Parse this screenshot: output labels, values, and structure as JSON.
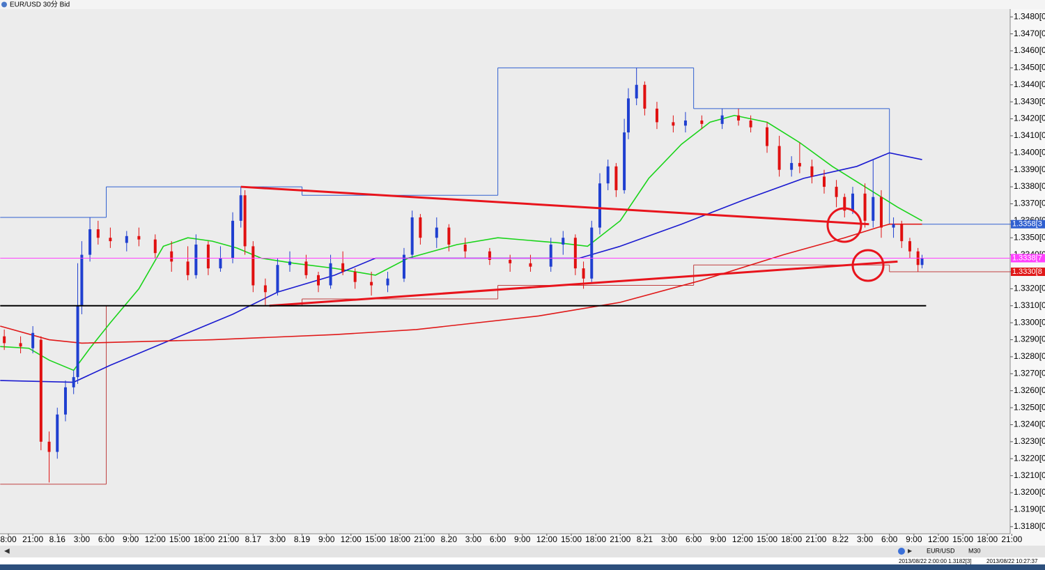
{
  "window_title": "EUR/USD 30分 Bid",
  "chart_data": {
    "type": "candlestick",
    "up_color": "#1f3fd0",
    "down_color": "#e01010",
    "xlim": [
      -2.05,
      245.6
    ],
    "ylim": [
      1.3175,
      1.3485
    ],
    "xticks": [
      {
        "value": 0,
        "label": "8:00"
      },
      {
        "value": 6,
        "label": "21:00"
      },
      {
        "value": 12,
        "label": "8.16"
      },
      {
        "value": 18,
        "label": "3:00"
      },
      {
        "value": 24,
        "label": "6:00"
      },
      {
        "value": 30,
        "label": "9:00"
      },
      {
        "value": 36,
        "label": "12:00"
      },
      {
        "value": 42,
        "label": "15:00"
      },
      {
        "value": 48,
        "label": "18:00"
      },
      {
        "value": 54,
        "label": "21:00"
      },
      {
        "value": 60,
        "label": "8.17"
      },
      {
        "value": 66,
        "label": "3:00"
      },
      {
        "value": 72,
        "label": "8.19"
      },
      {
        "value": 78,
        "label": "9:00"
      },
      {
        "value": 84,
        "label": "12:00"
      },
      {
        "value": 90,
        "label": "15:00"
      },
      {
        "value": 96,
        "label": "18:00"
      },
      {
        "value": 102,
        "label": "21:00"
      },
      {
        "value": 108,
        "label": "8.20"
      },
      {
        "value": 114,
        "label": "3:00"
      },
      {
        "value": 120,
        "label": "6:00"
      },
      {
        "value": 126,
        "label": "9:00"
      },
      {
        "value": 132,
        "label": "12:00"
      },
      {
        "value": 138,
        "label": "15:00"
      },
      {
        "value": 144,
        "label": "18:00"
      },
      {
        "value": 150,
        "label": "21:00"
      },
      {
        "value": 156,
        "label": "8.21"
      },
      {
        "value": 162,
        "label": "3:00"
      },
      {
        "value": 168,
        "label": "6:00"
      },
      {
        "value": 174,
        "label": "9:00"
      },
      {
        "value": 180,
        "label": "12:00"
      },
      {
        "value": 186,
        "label": "15:00"
      },
      {
        "value": 192,
        "label": "18:00"
      },
      {
        "value": 198,
        "label": "21:00"
      },
      {
        "value": 204,
        "label": "8.22"
      },
      {
        "value": 210,
        "label": "3:00"
      },
      {
        "value": 216,
        "label": "6:00"
      },
      {
        "value": 222,
        "label": "9:00"
      },
      {
        "value": 228,
        "label": "12:00"
      },
      {
        "value": 234,
        "label": "15:00"
      },
      {
        "value": 240,
        "label": "18:00"
      },
      {
        "value": 246,
        "label": "21:00"
      }
    ],
    "yticks": [
      {
        "value": 1.348,
        "label": "1.3480[0"
      },
      {
        "value": 1.347,
        "label": "1.3470[0"
      },
      {
        "value": 1.346,
        "label": "1.3460[0"
      },
      {
        "value": 1.345,
        "label": "1.3450[0"
      },
      {
        "value": 1.344,
        "label": "1.3440[0"
      },
      {
        "value": 1.343,
        "label": "1.3430[0"
      },
      {
        "value": 1.342,
        "label": "1.3420[0"
      },
      {
        "value": 1.341,
        "label": "1.3410[0"
      },
      {
        "value": 1.34,
        "label": "1.3400[0"
      },
      {
        "value": 1.339,
        "label": "1.3390[0"
      },
      {
        "value": 1.338,
        "label": "1.3380[0"
      },
      {
        "value": 1.337,
        "label": "1.3370[0"
      },
      {
        "value": 1.336,
        "label": "1.3360[0"
      },
      {
        "value": 1.335,
        "label": "1.3350[0"
      },
      {
        "value": 1.334,
        "label": "1.3340[0"
      },
      {
        "value": 1.333,
        "label": "1.3330[0"
      },
      {
        "value": 1.332,
        "label": "1.3320[0"
      },
      {
        "value": 1.331,
        "label": "1.3310[0"
      },
      {
        "value": 1.33,
        "label": "1.3300[0"
      },
      {
        "value": 1.329,
        "label": "1.3290[0"
      },
      {
        "value": 1.328,
        "label": "1.3280[0"
      },
      {
        "value": 1.327,
        "label": "1.3270[0"
      },
      {
        "value": 1.326,
        "label": "1.3260[0"
      },
      {
        "value": 1.325,
        "label": "1.3250[0"
      },
      {
        "value": 1.324,
        "label": "1.3240[0"
      },
      {
        "value": 1.323,
        "label": "1.3230[0"
      },
      {
        "value": 1.322,
        "label": "1.3220[0"
      },
      {
        "value": 1.321,
        "label": "1.3210[0"
      },
      {
        "value": 1.32,
        "label": "1.3200[0"
      },
      {
        "value": 1.319,
        "label": "1.3190[0"
      },
      {
        "value": 1.318,
        "label": "1.3180[0"
      }
    ],
    "candles": [
      {
        "x": -1,
        "open": 1.3292,
        "high": 1.3296,
        "low": 1.3284,
        "close": 1.3288
      },
      {
        "x": 3,
        "open": 1.3288,
        "high": 1.3292,
        "low": 1.3282,
        "close": 1.3286
      },
      {
        "x": 6,
        "open": 1.3285,
        "high": 1.3298,
        "low": 1.3282,
        "close": 1.3294
      },
      {
        "x": 8,
        "open": 1.329,
        "high": 1.3292,
        "low": 1.3225,
        "close": 1.323
      },
      {
        "x": 10,
        "open": 1.323,
        "high": 1.3236,
        "low": 1.3206,
        "close": 1.3224
      },
      {
        "x": 12,
        "open": 1.3224,
        "high": 1.325,
        "low": 1.322,
        "close": 1.3246
      },
      {
        "x": 14,
        "open": 1.3246,
        "high": 1.3266,
        "low": 1.3242,
        "close": 1.3262
      },
      {
        "x": 16,
        "open": 1.3262,
        "high": 1.3272,
        "low": 1.3258,
        "close": 1.3268
      },
      {
        "x": 17,
        "open": 1.3268,
        "high": 1.3335,
        "low": 1.3264,
        "close": 1.331
      },
      {
        "x": 18,
        "open": 1.331,
        "high": 1.3348,
        "low": 1.3305,
        "close": 1.334
      },
      {
        "x": 20,
        "open": 1.334,
        "high": 1.3362,
        "low": 1.3336,
        "close": 1.3355
      },
      {
        "x": 22,
        "open": 1.3355,
        "high": 1.336,
        "low": 1.3346,
        "close": 1.335
      },
      {
        "x": 25,
        "open": 1.335,
        "high": 1.3356,
        "low": 1.3344,
        "close": 1.3348
      },
      {
        "x": 29,
        "open": 1.3347,
        "high": 1.3354,
        "low": 1.3342,
        "close": 1.3351
      },
      {
        "x": 32,
        "open": 1.3351,
        "high": 1.3356,
        "low": 1.3345,
        "close": 1.3349
      },
      {
        "x": 36,
        "open": 1.3349,
        "high": 1.3352,
        "low": 1.3338,
        "close": 1.3341
      },
      {
        "x": 40,
        "open": 1.3342,
        "high": 1.3348,
        "low": 1.333,
        "close": 1.3336
      },
      {
        "x": 44,
        "open": 1.3336,
        "high": 1.3345,
        "low": 1.3325,
        "close": 1.3328
      },
      {
        "x": 46,
        "open": 1.3328,
        "high": 1.3352,
        "low": 1.3326,
        "close": 1.3346
      },
      {
        "x": 49,
        "open": 1.3346,
        "high": 1.3348,
        "low": 1.3328,
        "close": 1.3332
      },
      {
        "x": 52,
        "open": 1.3332,
        "high": 1.3345,
        "low": 1.333,
        "close": 1.3338
      },
      {
        "x": 55,
        "open": 1.3338,
        "high": 1.3365,
        "low": 1.3335,
        "close": 1.336
      },
      {
        "x": 57,
        "open": 1.336,
        "high": 1.338,
        "low": 1.3356,
        "close": 1.3375
      },
      {
        "x": 58,
        "open": 1.3375,
        "high": 1.3378,
        "low": 1.334,
        "close": 1.3345
      },
      {
        "x": 60,
        "open": 1.3345,
        "high": 1.3348,
        "low": 1.3318,
        "close": 1.3322
      },
      {
        "x": 63,
        "open": 1.3322,
        "high": 1.3326,
        "low": 1.331,
        "close": 1.3318
      },
      {
        "x": 66,
        "open": 1.3318,
        "high": 1.3338,
        "low": 1.3316,
        "close": 1.3334
      },
      {
        "x": 69,
        "open": 1.3334,
        "high": 1.3342,
        "low": 1.333,
        "close": 1.3336
      },
      {
        "x": 73,
        "open": 1.3336,
        "high": 1.334,
        "low": 1.3326,
        "close": 1.3328
      },
      {
        "x": 76,
        "open": 1.3328,
        "high": 1.333,
        "low": 1.3318,
        "close": 1.3322
      },
      {
        "x": 79,
        "open": 1.3322,
        "high": 1.334,
        "low": 1.332,
        "close": 1.3335
      },
      {
        "x": 82,
        "open": 1.3335,
        "high": 1.3342,
        "low": 1.3328,
        "close": 1.333
      },
      {
        "x": 85,
        "open": 1.333,
        "high": 1.3332,
        "low": 1.332,
        "close": 1.3324
      },
      {
        "x": 89,
        "open": 1.3324,
        "high": 1.333,
        "low": 1.3316,
        "close": 1.3322
      },
      {
        "x": 93,
        "open": 1.3322,
        "high": 1.333,
        "low": 1.3318,
        "close": 1.3326
      },
      {
        "x": 97,
        "open": 1.3326,
        "high": 1.3344,
        "low": 1.3324,
        "close": 1.334
      },
      {
        "x": 99,
        "open": 1.334,
        "high": 1.3366,
        "low": 1.3338,
        "close": 1.3362
      },
      {
        "x": 101,
        "open": 1.3362,
        "high": 1.3364,
        "low": 1.3346,
        "close": 1.335
      },
      {
        "x": 105,
        "open": 1.335,
        "high": 1.3362,
        "low": 1.3344,
        "close": 1.3356
      },
      {
        "x": 108,
        "open": 1.3356,
        "high": 1.3358,
        "low": 1.3342,
        "close": 1.3346
      },
      {
        "x": 112,
        "open": 1.3346,
        "high": 1.335,
        "low": 1.3338,
        "close": 1.3342
      },
      {
        "x": 118,
        "open": 1.3342,
        "high": 1.3344,
        "low": 1.3334,
        "close": 1.3337
      },
      {
        "x": 123,
        "open": 1.3337,
        "high": 1.334,
        "low": 1.333,
        "close": 1.3335
      },
      {
        "x": 128,
        "open": 1.3335,
        "high": 1.334,
        "low": 1.333,
        "close": 1.3333
      },
      {
        "x": 133,
        "open": 1.3333,
        "high": 1.335,
        "low": 1.333,
        "close": 1.3346
      },
      {
        "x": 136,
        "open": 1.3346,
        "high": 1.3354,
        "low": 1.334,
        "close": 1.335
      },
      {
        "x": 139,
        "open": 1.335,
        "high": 1.3352,
        "low": 1.3328,
        "close": 1.3332
      },
      {
        "x": 141,
        "open": 1.3332,
        "high": 1.3336,
        "low": 1.332,
        "close": 1.3326
      },
      {
        "x": 143,
        "open": 1.3326,
        "high": 1.336,
        "low": 1.3324,
        "close": 1.3356
      },
      {
        "x": 145,
        "open": 1.3356,
        "high": 1.3388,
        "low": 1.3352,
        "close": 1.3382
      },
      {
        "x": 147,
        "open": 1.3382,
        "high": 1.3396,
        "low": 1.3378,
        "close": 1.3392
      },
      {
        "x": 149,
        "open": 1.3392,
        "high": 1.3394,
        "low": 1.3374,
        "close": 1.3378
      },
      {
        "x": 151,
        "open": 1.3378,
        "high": 1.342,
        "low": 1.3376,
        "close": 1.3412
      },
      {
        "x": 152,
        "open": 1.3412,
        "high": 1.3438,
        "low": 1.3408,
        "close": 1.3432
      },
      {
        "x": 154,
        "open": 1.3432,
        "high": 1.345,
        "low": 1.3428,
        "close": 1.344
      },
      {
        "x": 156,
        "open": 1.344,
        "high": 1.3442,
        "low": 1.3422,
        "close": 1.3426
      },
      {
        "x": 159,
        "open": 1.3426,
        "high": 1.343,
        "low": 1.3414,
        "close": 1.3418
      },
      {
        "x": 163,
        "open": 1.3418,
        "high": 1.3422,
        "low": 1.3412,
        "close": 1.3416
      },
      {
        "x": 166,
        "open": 1.3416,
        "high": 1.3424,
        "low": 1.3412,
        "close": 1.3419
      },
      {
        "x": 170,
        "open": 1.3419,
        "high": 1.3422,
        "low": 1.3414,
        "close": 1.3417
      },
      {
        "x": 175,
        "open": 1.3417,
        "high": 1.3426,
        "low": 1.3414,
        "close": 1.3422
      },
      {
        "x": 179,
        "open": 1.3422,
        "high": 1.3426,
        "low": 1.3416,
        "close": 1.3419
      },
      {
        "x": 182,
        "open": 1.3419,
        "high": 1.3422,
        "low": 1.3412,
        "close": 1.3415
      },
      {
        "x": 186,
        "open": 1.3415,
        "high": 1.3418,
        "low": 1.34,
        "close": 1.3404
      },
      {
        "x": 189,
        "open": 1.3404,
        "high": 1.341,
        "low": 1.3386,
        "close": 1.339
      },
      {
        "x": 192,
        "open": 1.339,
        "high": 1.3398,
        "low": 1.3386,
        "close": 1.3394
      },
      {
        "x": 194,
        "open": 1.3394,
        "high": 1.3406,
        "low": 1.3388,
        "close": 1.3392
      },
      {
        "x": 197,
        "open": 1.3392,
        "high": 1.3396,
        "low": 1.3382,
        "close": 1.3386
      },
      {
        "x": 200,
        "open": 1.3386,
        "high": 1.339,
        "low": 1.3376,
        "close": 1.338
      },
      {
        "x": 203,
        "open": 1.338,
        "high": 1.3384,
        "low": 1.3368,
        "close": 1.3374
      },
      {
        "x": 205,
        "open": 1.3374,
        "high": 1.3376,
        "low": 1.3362,
        "close": 1.3366
      },
      {
        "x": 207,
        "open": 1.3366,
        "high": 1.338,
        "low": 1.3364,
        "close": 1.3376
      },
      {
        "x": 210,
        "open": 1.3376,
        "high": 1.3382,
        "low": 1.3356,
        "close": 1.336
      },
      {
        "x": 212,
        "open": 1.336,
        "high": 1.3396,
        "low": 1.3356,
        "close": 1.3374
      },
      {
        "x": 214,
        "open": 1.3374,
        "high": 1.3378,
        "low": 1.335,
        "close": 1.3356
      },
      {
        "x": 217,
        "open": 1.3356,
        "high": 1.3362,
        "low": 1.335,
        "close": 1.3358
      },
      {
        "x": 219,
        "open": 1.3358,
        "high": 1.336,
        "low": 1.3344,
        "close": 1.3348
      },
      {
        "x": 221,
        "open": 1.3348,
        "high": 1.335,
        "low": 1.3338,
        "close": 1.3342
      },
      {
        "x": 223,
        "open": 1.3342,
        "high": 1.3344,
        "low": 1.333,
        "close": 1.3334
      },
      {
        "x": 224,
        "open": 1.3334,
        "high": 1.334,
        "low": 1.3332,
        "close": 1.3338
      }
    ],
    "series": [
      {
        "color": "#19d419",
        "x": [
          -2,
          5,
          10,
          16,
          20,
          25,
          32,
          38,
          44,
          50,
          56,
          62,
          70,
          80,
          90,
          98,
          110,
          120,
          135,
          142,
          150,
          157,
          165,
          172,
          178,
          186,
          194,
          202,
          210,
          218,
          224
        ],
        "values": [
          1.3286,
          1.3285,
          1.3278,
          1.3272,
          1.3285,
          1.33,
          1.332,
          1.3345,
          1.335,
          1.3348,
          1.3344,
          1.3338,
          1.3335,
          1.3332,
          1.3328,
          1.3338,
          1.3346,
          1.335,
          1.3347,
          1.3345,
          1.336,
          1.3385,
          1.3405,
          1.3418,
          1.3422,
          1.3418,
          1.3406,
          1.3392,
          1.338,
          1.3368,
          1.336
        ]
      },
      {
        "color": "#1a1ad0",
        "x": [
          -2,
          16,
          25,
          40,
          55,
          66,
          80,
          90,
          100,
          120,
          140,
          150,
          165,
          180,
          195,
          208,
          216,
          224
        ],
        "values": [
          1.3266,
          1.3265,
          1.3275,
          1.329,
          1.3305,
          1.3318,
          1.3328,
          1.3338,
          1.3338,
          1.3338,
          1.3338,
          1.3345,
          1.3358,
          1.3372,
          1.3385,
          1.3392,
          1.34,
          1.3396
        ]
      },
      {
        "color": "#e01818",
        "x": [
          -2,
          10,
          18,
          50,
          80,
          100,
          130,
          150,
          170,
          190,
          205,
          213,
          216,
          224
        ],
        "values": [
          1.3298,
          1.329,
          1.3288,
          1.329,
          1.3293,
          1.3296,
          1.3304,
          1.3312,
          1.3325,
          1.334,
          1.335,
          1.3356,
          1.3358,
          1.3358
        ]
      }
    ],
    "daily_boxes": {
      "edges": [
        -2,
        24,
        72,
        120,
        168,
        216,
        246
      ],
      "high_color": "#3060d0",
      "low_color": "#c04040",
      "highs": [
        1.3362,
        1.338,
        1.3375,
        1.345,
        1.3426,
        1.3358
      ],
      "lows": [
        1.3205,
        1.331,
        1.3314,
        1.3322,
        1.3334,
        1.333
      ]
    },
    "trendlines": [
      {
        "color": "#e8141c",
        "x": [
          57,
          211
        ],
        "values": [
          1.338,
          1.3358
        ]
      },
      {
        "color": "#e8141c",
        "x": [
          64,
          218
        ],
        "values": [
          1.331,
          1.3336
        ]
      },
      {
        "color": "#000000",
        "x": [
          -2,
          225
        ],
        "values": [
          1.331,
          1.331
        ]
      },
      {
        "color": "#ff40ff",
        "x": [
          -2,
          245.6
        ],
        "values": [
          1.3338,
          1.3338
        ]
      }
    ],
    "price_labels": [
      {
        "value": 1.3358,
        "label": "1.3358[3",
        "color": "#3060d0"
      },
      {
        "value": 1.3338,
        "label": "1.3338[7",
        "color": "#ff40ff"
      },
      {
        "value": 1.333,
        "label": "1.3330[8",
        "color": "#e01818"
      }
    ]
  },
  "status_bar": {
    "symbol": "EUR/USD",
    "timeframe": "M30",
    "cursor_info": "2013/08/22 2:00:00  1.3182[3]",
    "clock": "2013/08/22 10:27:37"
  }
}
